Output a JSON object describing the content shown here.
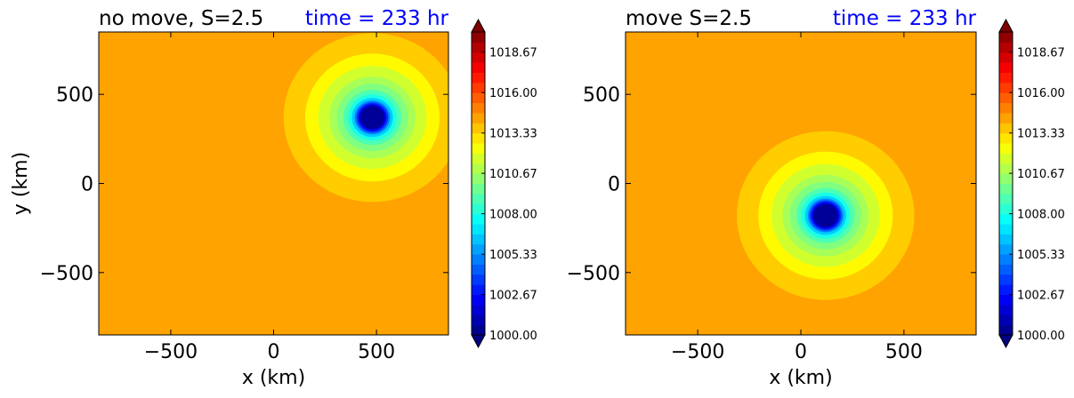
{
  "chart_data": [
    {
      "type": "heatmap",
      "subtype": "filled-contour",
      "title": "no move, S=2.5",
      "time_label": "time = 233 hr",
      "time_color": "#0000ff",
      "xlabel": "x (km)",
      "ylabel": "y (km)",
      "xlim": [
        -850,
        850
      ],
      "ylim": [
        -850,
        850
      ],
      "xticks": [
        -500,
        0,
        500
      ],
      "yticks": [
        -500,
        0,
        500
      ],
      "xtick_labels": [
        "−500",
        "0",
        "500"
      ],
      "ytick_labels": [
        "−500",
        "0",
        "500"
      ],
      "background_level": 1014.3,
      "vortex": {
        "center_x": 480,
        "center_y": 370,
        "min_value": 1000.0
      },
      "colorbar": {
        "ticks": [
          "1018.67",
          "1016.00",
          "1013.33",
          "1010.67",
          "1008.00",
          "1005.33",
          "1002.67",
          "1000.00"
        ],
        "range": [
          1000.0,
          1020.0
        ],
        "extend": "both"
      }
    },
    {
      "type": "heatmap",
      "subtype": "filled-contour",
      "title": "move S=2.5",
      "time_label": "time = 233 hr",
      "time_color": "#0000ff",
      "xlabel": "x (km)",
      "ylabel": "",
      "xlim": [
        -850,
        850
      ],
      "ylim": [
        -850,
        850
      ],
      "xticks": [
        -500,
        0,
        500
      ],
      "yticks": [
        -500,
        0,
        500
      ],
      "xtick_labels": [
        "−500",
        "0",
        "500"
      ],
      "ytick_labels": [
        "−500",
        "0",
        "500"
      ],
      "background_level": 1014.3,
      "vortex": {
        "center_x": 120,
        "center_y": -180,
        "min_value": 1000.0
      },
      "colorbar": {
        "ticks": [
          "1018.67",
          "1016.00",
          "1013.33",
          "1010.67",
          "1008.00",
          "1005.33",
          "1002.67",
          "1000.00"
        ],
        "range": [
          1000.0,
          1020.0
        ],
        "extend": "both"
      }
    }
  ]
}
